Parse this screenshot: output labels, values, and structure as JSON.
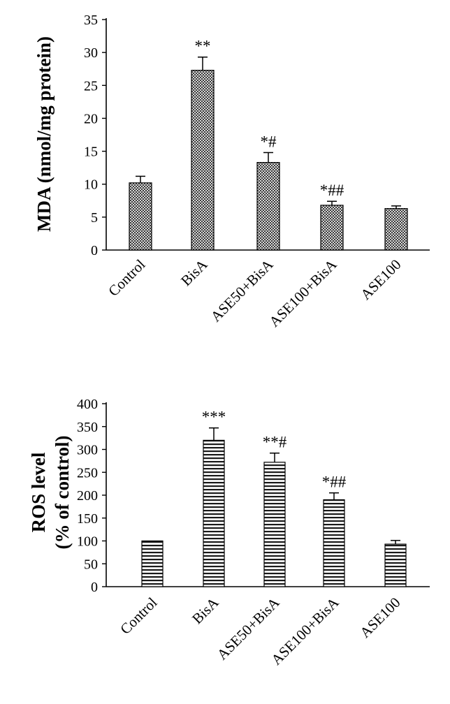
{
  "chart_data": [
    {
      "type": "bar",
      "ylabel": "MDA (nmol/mg protein)",
      "ylim": [
        0,
        35
      ],
      "yticks": [
        0,
        5,
        10,
        15,
        20,
        25,
        30,
        35
      ],
      "categories": [
        "Control",
        "BisA",
        "ASE50+BisA",
        "ASE100+BisA",
        "ASE100"
      ],
      "values": [
        10.2,
        27.3,
        13.3,
        6.8,
        6.3
      ],
      "errors": [
        1.0,
        2.0,
        1.5,
        0.6,
        0.4
      ],
      "annotations": [
        "",
        "**",
        "*#",
        "*##",
        ""
      ],
      "pattern": "checkered",
      "grid": false
    },
    {
      "type": "bar",
      "ylabel": [
        "ROS level",
        "(% of control)"
      ],
      "ylim": [
        0,
        400
      ],
      "yticks": [
        0,
        50,
        100,
        150,
        200,
        250,
        300,
        350,
        400
      ],
      "categories": [
        "Control",
        "BisA",
        "ASE50+BisA",
        "ASE100+BisA",
        "ASE100"
      ],
      "values": [
        100,
        320,
        272,
        190,
        93
      ],
      "errors": [
        0,
        27,
        20,
        15,
        8
      ],
      "annotations": [
        "",
        "***",
        "**#",
        "*##",
        ""
      ],
      "pattern": "horizontal-stripes",
      "grid": false
    }
  ]
}
